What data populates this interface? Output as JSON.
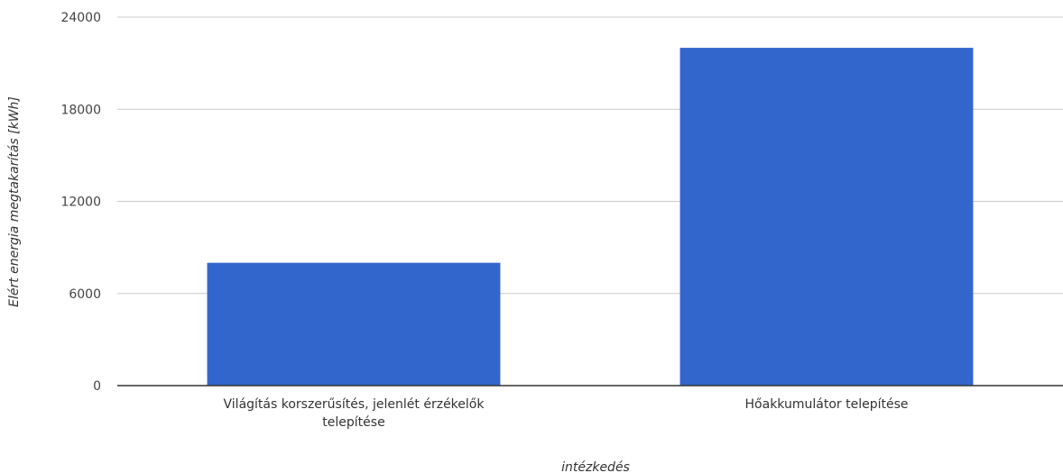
{
  "chart_data": {
    "type": "bar",
    "categories": [
      "Világítás korszerűsítés, jelenlét érzékelők telepítése",
      "Hőakkumulátor telepítése"
    ],
    "category_label_lines": [
      [
        "Világítás korszerűsítés, jelenlét érzékelők",
        "telepítése"
      ],
      [
        "Hőakkumulátor telepítése"
      ]
    ],
    "values": [
      8000,
      22000
    ],
    "xlabel": "intézkedés",
    "ylabel": "Elért energia megtakarítás [kWh]",
    "ylim": [
      0,
      24000
    ],
    "yticks": [
      0,
      6000,
      12000,
      18000,
      24000
    ],
    "grid": true,
    "legend": "none",
    "bar_color": "#3366cc",
    "grid_color": "#cccccc",
    "axis_color": "#333333"
  }
}
